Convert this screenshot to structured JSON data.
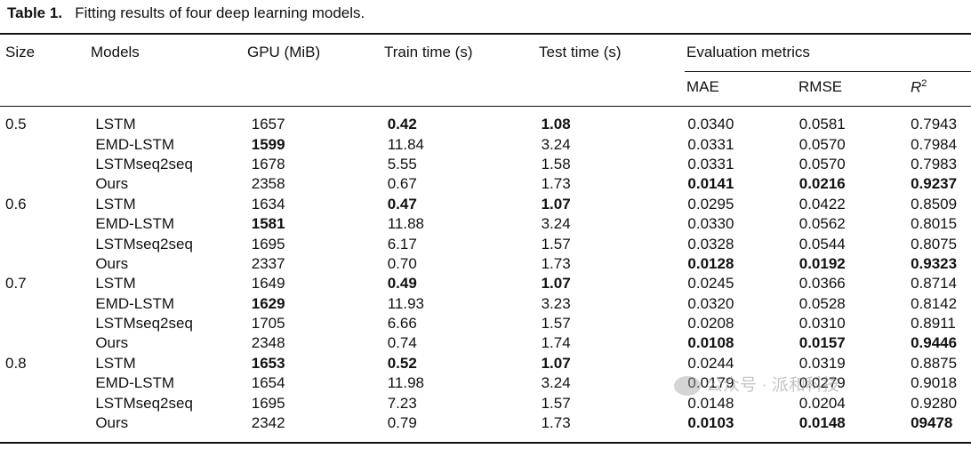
{
  "caption": {
    "label": "Table 1.",
    "text": "Fitting results of four deep learning models."
  },
  "headers": {
    "size": "Size",
    "models": "Models",
    "gpu": "GPU (MiB)",
    "train": "Train time (s)",
    "test": "Test time (s)",
    "eval": "Evaluation metrics",
    "mae": "MAE",
    "rmse": "RMSE",
    "r2_base": "R",
    "r2_sup": "2"
  },
  "rows": [
    {
      "size": "0.5",
      "model": "LSTM",
      "gpu": "1657",
      "train": "0.42",
      "test": "1.08",
      "mae": "0.0340",
      "rmse": "0.0581",
      "r2": "0.7943",
      "bold": [
        "train",
        "test"
      ]
    },
    {
      "size": "",
      "model": "EMD-LSTM",
      "gpu": "1599",
      "train": "11.84",
      "test": "3.24",
      "mae": "0.0331",
      "rmse": "0.0570",
      "r2": "0.7984",
      "bold": [
        "gpu"
      ]
    },
    {
      "size": "",
      "model": "LSTMseq2seq",
      "gpu": "1678",
      "train": "5.55",
      "test": "1.58",
      "mae": "0.0331",
      "rmse": "0.0570",
      "r2": "0.7983",
      "bold": []
    },
    {
      "size": "",
      "model": "Ours",
      "gpu": "2358",
      "train": "0.67",
      "test": "1.73",
      "mae": "0.0141",
      "rmse": "0.0216",
      "r2": "0.9237",
      "bold": [
        "mae",
        "rmse",
        "r2"
      ]
    },
    {
      "size": "0.6",
      "model": "LSTM",
      "gpu": "1634",
      "train": "0.47",
      "test": "1.07",
      "mae": "0.0295",
      "rmse": "0.0422",
      "r2": "0.8509",
      "bold": [
        "train",
        "test"
      ]
    },
    {
      "size": "",
      "model": "EMD-LSTM",
      "gpu": "1581",
      "train": "11.88",
      "test": "3.24",
      "mae": "0.0330",
      "rmse": "0.0562",
      "r2": "0.8015",
      "bold": [
        "gpu"
      ]
    },
    {
      "size": "",
      "model": "LSTMseq2seq",
      "gpu": "1695",
      "train": "6.17",
      "test": "1.57",
      "mae": "0.0328",
      "rmse": "0.0544",
      "r2": "0.8075",
      "bold": []
    },
    {
      "size": "",
      "model": "Ours",
      "gpu": "2337",
      "train": "0.70",
      "test": "1.73",
      "mae": "0.0128",
      "rmse": "0.0192",
      "r2": "0.9323",
      "bold": [
        "mae",
        "rmse",
        "r2"
      ]
    },
    {
      "size": "0.7",
      "model": "LSTM",
      "gpu": "1649",
      "train": "0.49",
      "test": "1.07",
      "mae": "0.0245",
      "rmse": "0.0366",
      "r2": "0.8714",
      "bold": [
        "train",
        "test"
      ]
    },
    {
      "size": "",
      "model": "EMD-LSTM",
      "gpu": "1629",
      "train": "11.93",
      "test": "3.23",
      "mae": "0.0320",
      "rmse": "0.0528",
      "r2": "0.8142",
      "bold": [
        "gpu"
      ]
    },
    {
      "size": "",
      "model": "LSTMseq2seq",
      "gpu": "1705",
      "train": "6.66",
      "test": "1.57",
      "mae": "0.0208",
      "rmse": "0.0310",
      "r2": "0.8911",
      "bold": []
    },
    {
      "size": "",
      "model": "Ours",
      "gpu": "2348",
      "train": "0.74",
      "test": "1.74",
      "mae": "0.0108",
      "rmse": "0.0157",
      "r2": "0.9446",
      "bold": [
        "mae",
        "rmse",
        "r2"
      ]
    },
    {
      "size": "0.8",
      "model": "LSTM",
      "gpu": "1653",
      "train": "0.52",
      "test": "1.07",
      "mae": "0.0244",
      "rmse": "0.0319",
      "r2": "0.8875",
      "bold": [
        "gpu",
        "train",
        "test"
      ]
    },
    {
      "size": "",
      "model": "EMD-LSTM",
      "gpu": "1654",
      "train": "11.98",
      "test": "3.24",
      "mae": "0.0179",
      "rmse": "0.0279",
      "r2": "0.9018",
      "bold": []
    },
    {
      "size": "",
      "model": "LSTMseq2seq",
      "gpu": "1695",
      "train": "7.23",
      "test": "1.57",
      "mae": "0.0148",
      "rmse": "0.0204",
      "r2": "0.9280",
      "bold": []
    },
    {
      "size": "",
      "model": "Ours",
      "gpu": "2342",
      "train": "0.79",
      "test": "1.73",
      "mae": "0.0103",
      "rmse": "0.0148",
      "r2": "09478",
      "bold": [
        "mae",
        "rmse",
        "r2"
      ]
    }
  ],
  "watermark": "公众号 · 派和科技"
}
